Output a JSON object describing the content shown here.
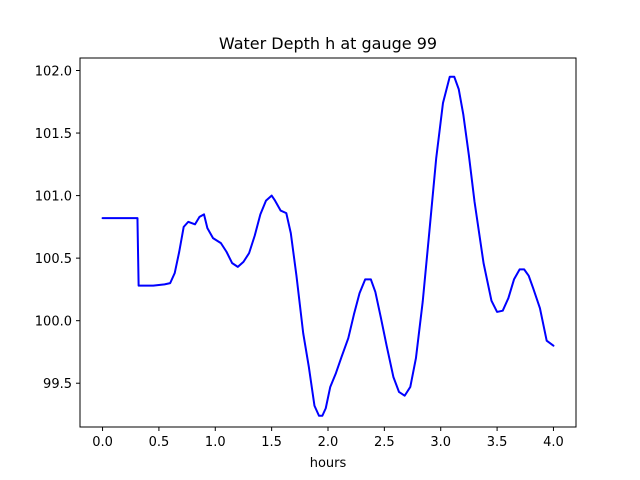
{
  "chart_data": {
    "type": "line",
    "title": "Water Depth h at gauge 99",
    "xlabel": "hours",
    "ylabel": "",
    "xlim": [
      -0.2,
      4.2
    ],
    "ylim": [
      99.15,
      102.1
    ],
    "xticks": [
      0.0,
      0.5,
      1.0,
      1.5,
      2.0,
      2.5,
      3.0,
      3.5,
      4.0
    ],
    "xtick_labels": [
      "0.0",
      "0.5",
      "1.0",
      "1.5",
      "2.0",
      "2.5",
      "3.0",
      "3.5",
      "4.0"
    ],
    "yticks": [
      99.5,
      100.0,
      100.5,
      101.0,
      101.5,
      102.0
    ],
    "ytick_labels": [
      "99.5",
      "100.0",
      "100.5",
      "101.0",
      "101.5",
      "102.0"
    ],
    "grid": false,
    "series": [
      {
        "color": "#0000ff",
        "x": [
          0.0,
          0.31,
          0.31,
          0.32,
          0.45,
          0.55,
          0.6,
          0.64,
          0.68,
          0.72,
          0.76,
          0.82,
          0.86,
          0.9,
          0.93,
          0.98,
          1.05,
          1.1,
          1.15,
          1.2,
          1.25,
          1.3,
          1.35,
          1.4,
          1.45,
          1.5,
          1.53,
          1.58,
          1.63,
          1.67,
          1.72,
          1.78,
          1.83,
          1.88,
          1.92,
          1.95,
          1.98,
          2.02,
          2.07,
          2.12,
          2.18,
          2.23,
          2.28,
          2.33,
          2.38,
          2.42,
          2.47,
          2.52,
          2.58,
          2.63,
          2.68,
          2.73,
          2.78,
          2.84,
          2.9,
          2.96,
          3.02,
          3.08,
          3.12,
          3.16,
          3.2,
          3.25,
          3.3,
          3.38,
          3.45,
          3.5,
          3.55,
          3.6,
          3.65,
          3.7,
          3.74,
          3.78,
          3.82,
          3.88,
          3.94,
          4.0
        ],
        "y": [
          100.82,
          100.82,
          100.8,
          100.28,
          100.28,
          100.29,
          100.3,
          100.38,
          100.55,
          100.75,
          100.79,
          100.77,
          100.83,
          100.85,
          100.74,
          100.66,
          100.62,
          100.55,
          100.46,
          100.43,
          100.47,
          100.54,
          100.68,
          100.85,
          100.96,
          101.0,
          100.96,
          100.88,
          100.86,
          100.7,
          100.36,
          99.9,
          99.63,
          99.32,
          99.24,
          99.24,
          99.3,
          99.47,
          99.58,
          99.71,
          99.86,
          100.05,
          100.22,
          100.33,
          100.33,
          100.23,
          100.02,
          99.8,
          99.55,
          99.43,
          99.4,
          99.47,
          99.7,
          100.15,
          100.72,
          101.3,
          101.74,
          101.95,
          101.95,
          101.85,
          101.65,
          101.32,
          100.95,
          100.46,
          100.16,
          100.07,
          100.08,
          100.18,
          100.33,
          100.41,
          100.41,
          100.36,
          100.26,
          100.1,
          99.84,
          99.8
        ]
      }
    ]
  }
}
